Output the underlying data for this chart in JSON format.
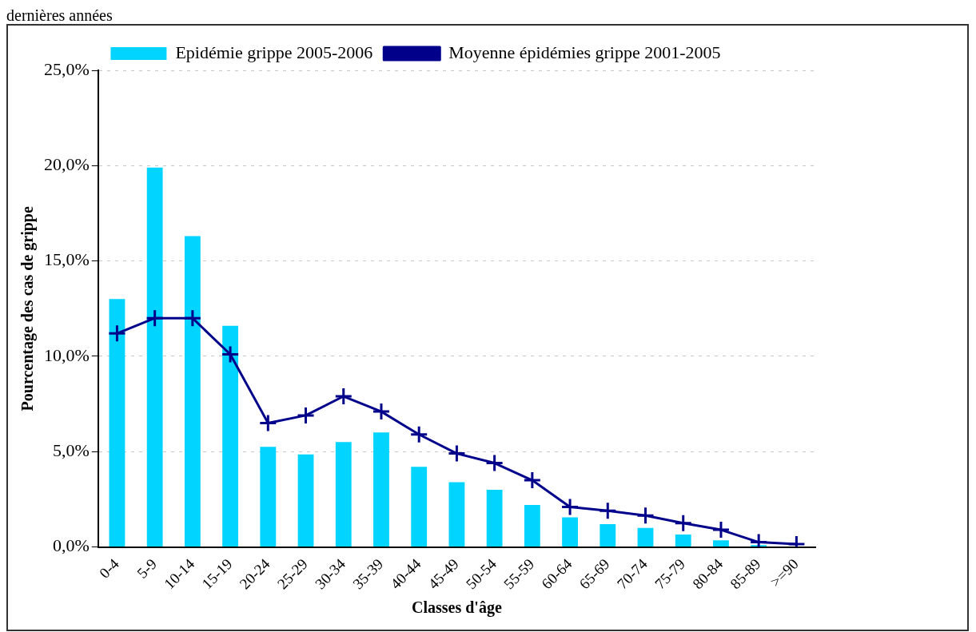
{
  "chart_data": {
    "type": "bar",
    "xlabel": "Classes d'âge",
    "ylabel": "Pourcentage des cas de grippe",
    "annotations": [
      "dernières années"
    ],
    "categories": [
      "0-4",
      "5-9",
      "10-14",
      "15-19",
      "20-24",
      "25-29",
      "30-34",
      "35-39",
      "40-44",
      "45-49",
      "50-54",
      "55-59",
      "60-64",
      "65-69",
      "70-74",
      "75-79",
      "80-84",
      "85-89",
      ">=90"
    ],
    "series": [
      {
        "name": "Epidémie grippe 2005-2006",
        "color": "#00d4ff",
        "values": [
          13.0,
          19.9,
          16.3,
          11.6,
          5.25,
          4.85,
          5.5,
          6.0,
          4.2,
          3.4,
          3.0,
          2.2,
          1.55,
          1.2,
          1.0,
          0.65,
          0.35,
          0.1,
          0
        ]
      },
      {
        "name": "Moyenne épidémies grippe 2001-2005",
        "type": "line",
        "color": "#00008b",
        "marker": "cross",
        "values": [
          11.2,
          12.0,
          12.0,
          10.1,
          6.5,
          6.9,
          7.9,
          7.1,
          5.9,
          4.9,
          4.4,
          3.5,
          2.1,
          1.9,
          1.65,
          1.25,
          0.9,
          0.25,
          0.15
        ]
      }
    ],
    "ylim": [
      0,
      25
    ],
    "yticks": [
      {
        "value": 0,
        "label": "0,0%"
      },
      {
        "value": 5,
        "label": "5,0%"
      },
      {
        "value": 10,
        "label": "10,0%"
      },
      {
        "value": 15,
        "label": "15,0%"
      },
      {
        "value": 20,
        "label": "20,0%"
      },
      {
        "value": 25,
        "label": "25,0%"
      }
    ],
    "grid": "y",
    "legend": "top"
  }
}
